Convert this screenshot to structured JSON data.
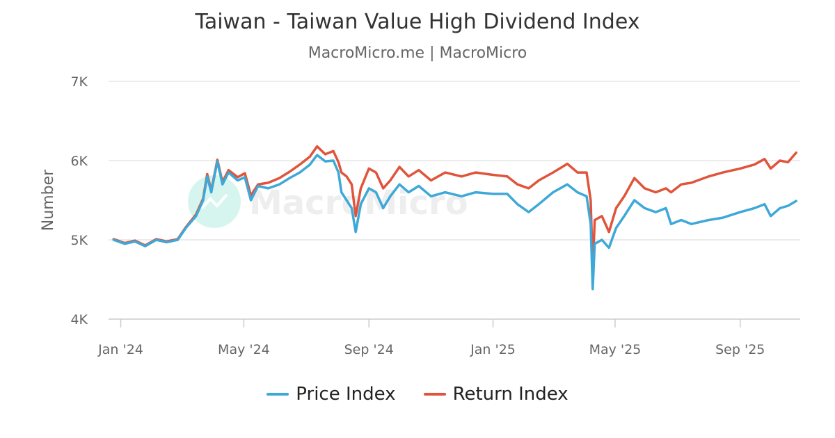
{
  "header": {
    "title": "Taiwan - Taiwan Value High Dividend Index",
    "subtitle": "MacroMicro.me | MacroMicro"
  },
  "watermark": {
    "text": "MacroMicro",
    "icon": "macromicro-logo-icon"
  },
  "colors": {
    "price": "#3ea8d8",
    "return": "#e0543b",
    "grid": "#e6e6e6",
    "axis": "#cccccc",
    "tick_text": "#666666"
  },
  "chart_data": {
    "type": "line",
    "title": "Taiwan - Taiwan Value High Dividend Index",
    "subtitle": "MacroMicro.me | MacroMicro",
    "ylabel": "Number",
    "xlabel": "",
    "ylim": [
      4000,
      7000
    ],
    "y_ticks": [
      4000,
      5000,
      6000,
      7000
    ],
    "y_tick_labels": [
      "4K",
      "5K",
      "6K",
      "7K"
    ],
    "xlim": [
      "2023-12-20",
      "2025-10-30"
    ],
    "x_ticks": [
      "2024-01-01",
      "2024-05-01",
      "2024-09-01",
      "2025-01-01",
      "2025-05-01",
      "2025-09-01"
    ],
    "x_tick_labels": [
      "Jan '24",
      "May '24",
      "Sep '24",
      "Jan '25",
      "May '25",
      "Sep '25"
    ],
    "grid": true,
    "legend_position": "bottom-center",
    "series": [
      {
        "name": "Price Index",
        "color": "#3ea8d8",
        "points": [
          [
            "2023-12-25",
            5000
          ],
          [
            "2024-01-05",
            4950
          ],
          [
            "2024-01-15",
            4980
          ],
          [
            "2024-01-25",
            4920
          ],
          [
            "2024-02-05",
            5000
          ],
          [
            "2024-02-15",
            4970
          ],
          [
            "2024-02-26",
            5000
          ],
          [
            "2024-03-05",
            5150
          ],
          [
            "2024-03-15",
            5300
          ],
          [
            "2024-03-22",
            5500
          ],
          [
            "2024-03-26",
            5800
          ],
          [
            "2024-03-30",
            5600
          ],
          [
            "2024-04-05",
            5990
          ],
          [
            "2024-04-10",
            5700
          ],
          [
            "2024-04-16",
            5850
          ],
          [
            "2024-04-25",
            5750
          ],
          [
            "2024-05-02",
            5790
          ],
          [
            "2024-05-08",
            5500
          ],
          [
            "2024-05-15",
            5680
          ],
          [
            "2024-05-25",
            5650
          ],
          [
            "2024-06-05",
            5700
          ],
          [
            "2024-06-15",
            5780
          ],
          [
            "2024-06-25",
            5850
          ],
          [
            "2024-07-05",
            5950
          ],
          [
            "2024-07-12",
            6070
          ],
          [
            "2024-07-20",
            5990
          ],
          [
            "2024-07-28",
            6000
          ],
          [
            "2024-08-02",
            5850
          ],
          [
            "2024-08-05",
            5600
          ],
          [
            "2024-08-10",
            5500
          ],
          [
            "2024-08-15",
            5400
          ],
          [
            "2024-08-19",
            5100
          ],
          [
            "2024-08-24",
            5450
          ],
          [
            "2024-09-01",
            5650
          ],
          [
            "2024-09-08",
            5600
          ],
          [
            "2024-09-15",
            5400
          ],
          [
            "2024-09-22",
            5550
          ],
          [
            "2024-10-01",
            5700
          ],
          [
            "2024-10-10",
            5600
          ],
          [
            "2024-10-20",
            5680
          ],
          [
            "2024-11-01",
            5550
          ],
          [
            "2024-11-15",
            5600
          ],
          [
            "2024-12-01",
            5550
          ],
          [
            "2024-12-15",
            5600
          ],
          [
            "2025-01-01",
            5580
          ],
          [
            "2025-01-15",
            5580
          ],
          [
            "2025-01-25",
            5450
          ],
          [
            "2025-02-05",
            5350
          ],
          [
            "2025-02-15",
            5450
          ],
          [
            "2025-03-01",
            5600
          ],
          [
            "2025-03-15",
            5700
          ],
          [
            "2025-03-25",
            5600
          ],
          [
            "2025-04-03",
            5550
          ],
          [
            "2025-04-07",
            5200
          ],
          [
            "2025-04-09",
            4380
          ],
          [
            "2025-04-11",
            4950
          ],
          [
            "2025-04-18",
            5000
          ],
          [
            "2025-04-25",
            4900
          ],
          [
            "2025-05-02",
            5150
          ],
          [
            "2025-05-10",
            5300
          ],
          [
            "2025-05-20",
            5500
          ],
          [
            "2025-05-30",
            5400
          ],
          [
            "2025-06-10",
            5350
          ],
          [
            "2025-06-20",
            5400
          ],
          [
            "2025-06-25",
            5200
          ],
          [
            "2025-07-05",
            5250
          ],
          [
            "2025-07-15",
            5200
          ],
          [
            "2025-08-01",
            5250
          ],
          [
            "2025-08-15",
            5280
          ],
          [
            "2025-09-01",
            5350
          ],
          [
            "2025-09-15",
            5400
          ],
          [
            "2025-09-25",
            5450
          ],
          [
            "2025-10-01",
            5300
          ],
          [
            "2025-10-10",
            5400
          ],
          [
            "2025-10-18",
            5430
          ],
          [
            "2025-10-26",
            5490
          ]
        ]
      },
      {
        "name": "Return Index",
        "color": "#e0543b",
        "points": [
          [
            "2023-12-25",
            5010
          ],
          [
            "2024-01-05",
            4960
          ],
          [
            "2024-01-15",
            4990
          ],
          [
            "2024-01-25",
            4930
          ],
          [
            "2024-02-05",
            5010
          ],
          [
            "2024-02-15",
            4980
          ],
          [
            "2024-02-26",
            5010
          ],
          [
            "2024-03-05",
            5160
          ],
          [
            "2024-03-15",
            5320
          ],
          [
            "2024-03-22",
            5520
          ],
          [
            "2024-03-26",
            5830
          ],
          [
            "2024-03-30",
            5620
          ],
          [
            "2024-04-05",
            6010
          ],
          [
            "2024-04-10",
            5730
          ],
          [
            "2024-04-16",
            5880
          ],
          [
            "2024-04-25",
            5790
          ],
          [
            "2024-05-02",
            5840
          ],
          [
            "2024-05-08",
            5560
          ],
          [
            "2024-05-15",
            5700
          ],
          [
            "2024-05-25",
            5720
          ],
          [
            "2024-06-05",
            5780
          ],
          [
            "2024-06-15",
            5860
          ],
          [
            "2024-06-25",
            5950
          ],
          [
            "2024-07-05",
            6050
          ],
          [
            "2024-07-12",
            6180
          ],
          [
            "2024-07-20",
            6080
          ],
          [
            "2024-07-28",
            6120
          ],
          [
            "2024-08-02",
            5980
          ],
          [
            "2024-08-05",
            5850
          ],
          [
            "2024-08-10",
            5800
          ],
          [
            "2024-08-15",
            5700
          ],
          [
            "2024-08-19",
            5300
          ],
          [
            "2024-08-24",
            5650
          ],
          [
            "2024-09-01",
            5900
          ],
          [
            "2024-09-08",
            5850
          ],
          [
            "2024-09-15",
            5650
          ],
          [
            "2024-09-22",
            5750
          ],
          [
            "2024-10-01",
            5920
          ],
          [
            "2024-10-10",
            5800
          ],
          [
            "2024-10-20",
            5880
          ],
          [
            "2024-11-01",
            5750
          ],
          [
            "2024-11-15",
            5850
          ],
          [
            "2024-12-01",
            5800
          ],
          [
            "2024-12-15",
            5850
          ],
          [
            "2025-01-01",
            5820
          ],
          [
            "2025-01-15",
            5800
          ],
          [
            "2025-01-25",
            5700
          ],
          [
            "2025-02-05",
            5650
          ],
          [
            "2025-02-15",
            5750
          ],
          [
            "2025-03-01",
            5850
          ],
          [
            "2025-03-15",
            5960
          ],
          [
            "2025-03-25",
            5850
          ],
          [
            "2025-04-03",
            5850
          ],
          [
            "2025-04-07",
            5500
          ],
          [
            "2025-04-09",
            4620
          ],
          [
            "2025-04-11",
            5250
          ],
          [
            "2025-04-18",
            5300
          ],
          [
            "2025-04-25",
            5100
          ],
          [
            "2025-05-02",
            5400
          ],
          [
            "2025-05-10",
            5550
          ],
          [
            "2025-05-20",
            5780
          ],
          [
            "2025-05-30",
            5650
          ],
          [
            "2025-06-10",
            5600
          ],
          [
            "2025-06-20",
            5650
          ],
          [
            "2025-06-25",
            5600
          ],
          [
            "2025-07-05",
            5700
          ],
          [
            "2025-07-15",
            5720
          ],
          [
            "2025-08-01",
            5800
          ],
          [
            "2025-08-15",
            5850
          ],
          [
            "2025-09-01",
            5900
          ],
          [
            "2025-09-15",
            5950
          ],
          [
            "2025-09-25",
            6020
          ],
          [
            "2025-10-01",
            5900
          ],
          [
            "2025-10-10",
            6000
          ],
          [
            "2025-10-18",
            5980
          ],
          [
            "2025-10-26",
            6100
          ]
        ]
      }
    ]
  }
}
